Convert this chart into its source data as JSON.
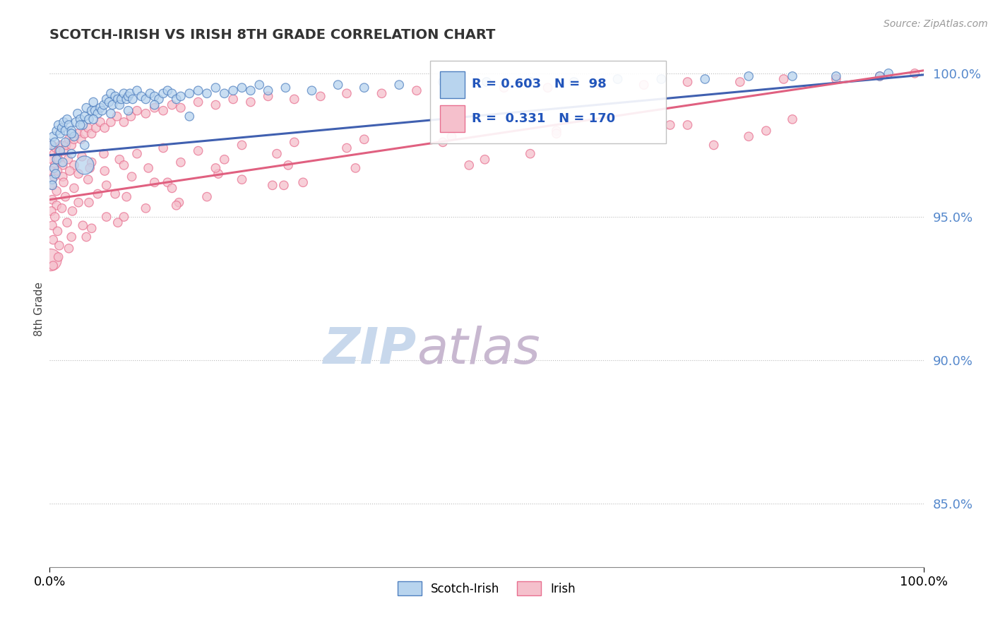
{
  "title": "SCOTCH-IRISH VS IRISH 8TH GRADE CORRELATION CHART",
  "source": "Source: ZipAtlas.com",
  "ylabel": "8th Grade",
  "xlim": [
    0.0,
    1.0
  ],
  "ylim": [
    0.828,
    1.008
  ],
  "yticks": [
    0.85,
    0.9,
    0.95,
    1.0
  ],
  "ytick_labels": [
    "85.0%",
    "90.0%",
    "95.0%",
    "100.0%"
  ],
  "xtick_labels": [
    "0.0%",
    "100.0%"
  ],
  "legend_r1": "R = 0.603",
  "legend_n1": "N =  98",
  "legend_r2": "R =  0.331",
  "legend_n2": "N = 170",
  "blue_fill": "#B8D4EE",
  "blue_edge": "#5080C0",
  "pink_fill": "#F5C0CC",
  "pink_edge": "#E87090",
  "blue_line_color": "#4060B0",
  "pink_line_color": "#E06080",
  "watermark_zip": "ZIP",
  "watermark_atlas": "atlas",
  "watermark_color_zip": "#C8D8EC",
  "watermark_color_atlas": "#C8B8D0",
  "background_color": "#FFFFFF",
  "blue_trendline_x": [
    0.0,
    1.0
  ],
  "blue_trendline_y": [
    0.9715,
    0.9995
  ],
  "pink_trendline_x": [
    0.0,
    1.0
  ],
  "pink_trendline_y": [
    0.956,
    1.001
  ],
  "scotch_irish_x": [
    0.002,
    0.004,
    0.006,
    0.008,
    0.01,
    0.012,
    0.014,
    0.016,
    0.018,
    0.02,
    0.022,
    0.025,
    0.028,
    0.03,
    0.032,
    0.035,
    0.038,
    0.04,
    0.042,
    0.045,
    0.048,
    0.05,
    0.052,
    0.055,
    0.058,
    0.06,
    0.062,
    0.065,
    0.068,
    0.07,
    0.072,
    0.075,
    0.078,
    0.08,
    0.082,
    0.085,
    0.088,
    0.09,
    0.092,
    0.095,
    0.1,
    0.105,
    0.11,
    0.115,
    0.12,
    0.125,
    0.13,
    0.135,
    0.14,
    0.145,
    0.15,
    0.16,
    0.17,
    0.18,
    0.19,
    0.2,
    0.21,
    0.22,
    0.23,
    0.24,
    0.25,
    0.27,
    0.3,
    0.33,
    0.36,
    0.4,
    0.45,
    0.5,
    0.55,
    0.6,
    0.65,
    0.7,
    0.75,
    0.8,
    0.85,
    0.9,
    0.95,
    0.003,
    0.005,
    0.008,
    0.012,
    0.018,
    0.025,
    0.035,
    0.05,
    0.07,
    0.09,
    0.12,
    0.16,
    0.003,
    0.007,
    0.015,
    0.025,
    0.04,
    0.04,
    0.96
  ],
  "scotch_irish_y": [
    0.975,
    0.978,
    0.976,
    0.98,
    0.982,
    0.979,
    0.981,
    0.983,
    0.98,
    0.984,
    0.982,
    0.98,
    0.978,
    0.983,
    0.986,
    0.984,
    0.982,
    0.985,
    0.988,
    0.984,
    0.987,
    0.99,
    0.987,
    0.986,
    0.988,
    0.987,
    0.989,
    0.991,
    0.99,
    0.993,
    0.989,
    0.992,
    0.991,
    0.989,
    0.991,
    0.993,
    0.991,
    0.992,
    0.993,
    0.991,
    0.994,
    0.992,
    0.991,
    0.993,
    0.992,
    0.991,
    0.993,
    0.994,
    0.993,
    0.991,
    0.992,
    0.993,
    0.994,
    0.993,
    0.995,
    0.993,
    0.994,
    0.995,
    0.994,
    0.996,
    0.994,
    0.995,
    0.994,
    0.996,
    0.995,
    0.996,
    0.997,
    0.997,
    0.997,
    0.997,
    0.998,
    0.998,
    0.998,
    0.999,
    0.999,
    0.999,
    0.999,
    0.963,
    0.967,
    0.97,
    0.973,
    0.976,
    0.979,
    0.982,
    0.984,
    0.986,
    0.987,
    0.989,
    0.985,
    0.961,
    0.965,
    0.969,
    0.972,
    0.975,
    0.968,
    1.0
  ],
  "scotch_irish_sizes": [
    80,
    80,
    80,
    80,
    80,
    80,
    80,
    80,
    80,
    80,
    80,
    80,
    80,
    80,
    80,
    80,
    80,
    80,
    80,
    80,
    80,
    80,
    80,
    80,
    80,
    80,
    80,
    80,
    80,
    80,
    80,
    80,
    80,
    80,
    80,
    80,
    80,
    80,
    80,
    80,
    80,
    80,
    80,
    80,
    80,
    80,
    80,
    80,
    80,
    80,
    80,
    80,
    80,
    80,
    80,
    80,
    80,
    80,
    80,
    80,
    80,
    80,
    80,
    80,
    80,
    80,
    80,
    80,
    80,
    80,
    80,
    80,
    80,
    80,
    80,
    80,
    80,
    80,
    80,
    80,
    80,
    80,
    80,
    80,
    80,
    80,
    80,
    80,
    80,
    80,
    80,
    80,
    80,
    80,
    350,
    80
  ],
  "irish_x": [
    0.003,
    0.005,
    0.007,
    0.009,
    0.011,
    0.013,
    0.016,
    0.019,
    0.022,
    0.025,
    0.028,
    0.032,
    0.036,
    0.04,
    0.044,
    0.048,
    0.053,
    0.058,
    0.063,
    0.07,
    0.077,
    0.085,
    0.093,
    0.1,
    0.11,
    0.12,
    0.13,
    0.14,
    0.15,
    0.17,
    0.19,
    0.21,
    0.23,
    0.25,
    0.28,
    0.31,
    0.34,
    0.38,
    0.42,
    0.47,
    0.52,
    0.57,
    0.63,
    0.68,
    0.73,
    0.79,
    0.84,
    0.9,
    0.95,
    0.99,
    0.003,
    0.006,
    0.01,
    0.015,
    0.021,
    0.028,
    0.037,
    0.048,
    0.062,
    0.08,
    0.1,
    0.13,
    0.17,
    0.22,
    0.28,
    0.36,
    0.46,
    0.58,
    0.71,
    0.85,
    0.002,
    0.005,
    0.009,
    0.015,
    0.023,
    0.033,
    0.046,
    0.063,
    0.085,
    0.113,
    0.15,
    0.2,
    0.26,
    0.34,
    0.45,
    0.58,
    0.73,
    0.003,
    0.008,
    0.016,
    0.028,
    0.044,
    0.065,
    0.094,
    0.135,
    0.193,
    0.273,
    0.003,
    0.008,
    0.018,
    0.033,
    0.055,
    0.088,
    0.14,
    0.22,
    0.35,
    0.55,
    0.8,
    0.002,
    0.006,
    0.014,
    0.026,
    0.045,
    0.075,
    0.12,
    0.19,
    0.003,
    0.009,
    0.02,
    0.038,
    0.065,
    0.11,
    0.18,
    0.29,
    0.48,
    0.76,
    0.004,
    0.011,
    0.025,
    0.048,
    0.085,
    0.148,
    0.255,
    0.001,
    0.004,
    0.01,
    0.022,
    0.042,
    0.078,
    0.145,
    0.268,
    0.498,
    0.82
  ],
  "irish_y": [
    0.975,
    0.972,
    0.974,
    0.971,
    0.973,
    0.975,
    0.973,
    0.975,
    0.977,
    0.975,
    0.977,
    0.979,
    0.977,
    0.979,
    0.981,
    0.979,
    0.981,
    0.983,
    0.981,
    0.983,
    0.985,
    0.983,
    0.985,
    0.987,
    0.986,
    0.988,
    0.987,
    0.989,
    0.988,
    0.99,
    0.989,
    0.991,
    0.99,
    0.992,
    0.991,
    0.992,
    0.993,
    0.993,
    0.994,
    0.994,
    0.995,
    0.995,
    0.996,
    0.996,
    0.997,
    0.997,
    0.998,
    0.998,
    0.999,
    1.0,
    0.97,
    0.968,
    0.97,
    0.968,
    0.97,
    0.968,
    0.971,
    0.969,
    0.972,
    0.97,
    0.972,
    0.974,
    0.973,
    0.975,
    0.976,
    0.977,
    0.978,
    0.98,
    0.982,
    0.984,
    0.966,
    0.964,
    0.966,
    0.964,
    0.966,
    0.965,
    0.967,
    0.966,
    0.968,
    0.967,
    0.969,
    0.97,
    0.972,
    0.974,
    0.976,
    0.979,
    0.982,
    0.961,
    0.959,
    0.962,
    0.96,
    0.963,
    0.961,
    0.964,
    0.962,
    0.965,
    0.968,
    0.956,
    0.954,
    0.957,
    0.955,
    0.958,
    0.957,
    0.96,
    0.963,
    0.967,
    0.972,
    0.978,
    0.952,
    0.95,
    0.953,
    0.952,
    0.955,
    0.958,
    0.962,
    0.967,
    0.947,
    0.945,
    0.948,
    0.947,
    0.95,
    0.953,
    0.957,
    0.962,
    0.968,
    0.975,
    0.942,
    0.94,
    0.943,
    0.946,
    0.95,
    0.955,
    0.961,
    0.935,
    0.933,
    0.936,
    0.939,
    0.943,
    0.948,
    0.954,
    0.961,
    0.97,
    0.98
  ],
  "irish_sizes": [
    80,
    80,
    80,
    80,
    80,
    80,
    80,
    80,
    80,
    80,
    80,
    80,
    80,
    80,
    80,
    80,
    80,
    80,
    80,
    80,
    80,
    80,
    80,
    80,
    80,
    80,
    80,
    80,
    80,
    80,
    80,
    80,
    80,
    80,
    80,
    80,
    80,
    80,
    80,
    80,
    80,
    80,
    80,
    80,
    80,
    80,
    80,
    80,
    80,
    80,
    80,
    80,
    80,
    80,
    80,
    80,
    80,
    80,
    80,
    80,
    80,
    80,
    80,
    80,
    80,
    80,
    80,
    80,
    80,
    80,
    80,
    80,
    80,
    80,
    80,
    80,
    80,
    80,
    80,
    80,
    80,
    80,
    80,
    80,
    80,
    80,
    80,
    80,
    80,
    80,
    80,
    80,
    80,
    80,
    80,
    80,
    80,
    80,
    80,
    80,
    80,
    80,
    80,
    80,
    80,
    80,
    80,
    80,
    80,
    80,
    80,
    80,
    80,
    80,
    80,
    80,
    80,
    80,
    80,
    80,
    80,
    80,
    80,
    80,
    80,
    80,
    80,
    80,
    80,
    80,
    80,
    80,
    80,
    500,
    80,
    80,
    80,
    80,
    80,
    80,
    80,
    80,
    80
  ]
}
